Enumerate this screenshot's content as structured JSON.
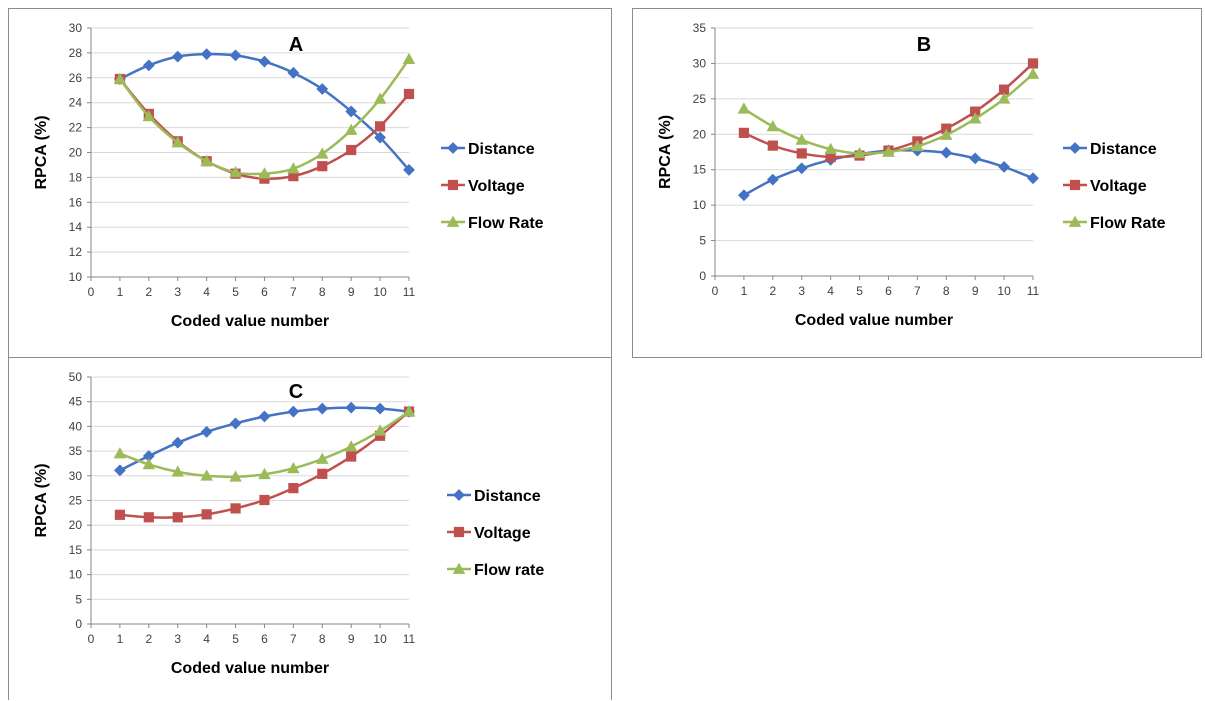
{
  "chart_data": [
    {
      "type": "line",
      "title": "A",
      "xlabel": "Coded value number",
      "ylabel": "RPCA (%)",
      "xlim": [
        0,
        11
      ],
      "ylim": [
        10,
        30
      ],
      "yticks": [
        10,
        12,
        14,
        16,
        18,
        20,
        22,
        24,
        26,
        28,
        30
      ],
      "x": [
        1,
        2,
        3,
        4,
        5,
        6,
        7,
        8,
        9,
        10,
        11
      ],
      "legend_position": "right",
      "series": [
        {
          "name": "Distance",
          "color": "#4472c4",
          "marker": "diamond",
          "values": [
            25.9,
            27.0,
            27.7,
            27.9,
            27.8,
            27.3,
            26.4,
            25.1,
            23.3,
            21.2,
            18.6
          ]
        },
        {
          "name": "Voltage",
          "color": "#c0504d",
          "marker": "square",
          "values": [
            25.9,
            23.1,
            20.9,
            19.3,
            18.3,
            17.9,
            18.1,
            18.9,
            20.2,
            22.1,
            24.7
          ]
        },
        {
          "name": "Flow Rate",
          "color": "#9bbb59",
          "marker": "triangle",
          "values": [
            25.9,
            22.9,
            20.8,
            19.3,
            18.4,
            18.3,
            18.7,
            19.9,
            21.8,
            24.3,
            27.5
          ]
        }
      ]
    },
    {
      "type": "line",
      "title": "B",
      "xlabel": "Coded value number",
      "ylabel": "RPCA (%)",
      "xlim": [
        0,
        11
      ],
      "ylim": [
        0,
        35
      ],
      "yticks": [
        0,
        5,
        10,
        15,
        20,
        25,
        30,
        35
      ],
      "x": [
        1,
        2,
        3,
        4,
        5,
        6,
        7,
        8,
        9,
        10,
        11
      ],
      "legend_position": "right",
      "series": [
        {
          "name": "Distance",
          "color": "#4472c4",
          "marker": "diamond",
          "values": [
            11.4,
            13.6,
            15.2,
            16.4,
            17.2,
            17.7,
            17.7,
            17.4,
            16.6,
            15.4,
            13.8
          ]
        },
        {
          "name": "Voltage",
          "color": "#c0504d",
          "marker": "square",
          "values": [
            20.2,
            18.4,
            17.3,
            16.8,
            17.0,
            17.7,
            19.0,
            20.8,
            23.2,
            26.3,
            30.0
          ]
        },
        {
          "name": "Flow Rate",
          "color": "#9bbb59",
          "marker": "triangle",
          "values": [
            23.6,
            21.1,
            19.2,
            17.9,
            17.3,
            17.5,
            18.3,
            19.9,
            22.2,
            25.0,
            28.5
          ]
        }
      ]
    },
    {
      "type": "line",
      "title": "C",
      "xlabel": "Coded value number",
      "ylabel": "RPCA (%)",
      "xlim": [
        0,
        11
      ],
      "ylim": [
        0,
        50
      ],
      "yticks": [
        0,
        5,
        10,
        15,
        20,
        25,
        30,
        35,
        40,
        45,
        50
      ],
      "x": [
        1,
        2,
        3,
        4,
        5,
        6,
        7,
        8,
        9,
        10,
        11
      ],
      "legend_position": "right",
      "series": [
        {
          "name": "Distance",
          "color": "#4472c4",
          "marker": "diamond",
          "values": [
            31.1,
            34.0,
            36.7,
            38.9,
            40.6,
            42.0,
            43.0,
            43.6,
            43.8,
            43.6,
            43.0
          ]
        },
        {
          "name": "Voltage",
          "color": "#c0504d",
          "marker": "square",
          "values": [
            22.1,
            21.6,
            21.6,
            22.2,
            23.4,
            25.1,
            27.5,
            30.4,
            33.9,
            38.1,
            43.0
          ]
        },
        {
          "name": "Flow rate",
          "color": "#9bbb59",
          "marker": "triangle",
          "values": [
            34.5,
            32.3,
            30.8,
            30.0,
            29.8,
            30.3,
            31.5,
            33.4,
            35.9,
            39.1,
            43.0
          ]
        }
      ]
    }
  ]
}
